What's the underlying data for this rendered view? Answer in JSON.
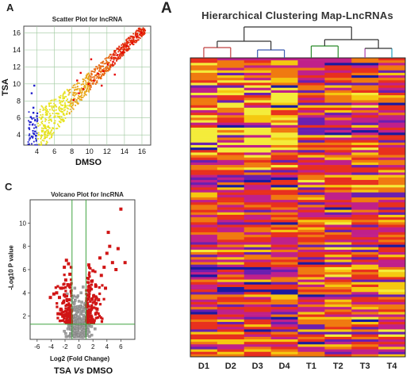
{
  "panels": {
    "A_left": "A",
    "A_right": "A",
    "C": "C"
  },
  "chart_data": [
    {
      "type": "scatter",
      "title": "Scatter Plot for lncRNA",
      "xlabel": "DMSO",
      "ylabel": "TSA",
      "xlim": [
        2.5,
        17
      ],
      "ylim": [
        2.8,
        16.8
      ],
      "x_ticks": [
        4,
        6,
        8,
        10,
        12,
        14,
        16
      ],
      "y_ticks": [
        4,
        6,
        8,
        10,
        12,
        14,
        16
      ],
      "grid": true,
      "colors": {
        "low": "#1f1fcc",
        "mid": "#e8e81a",
        "high": "#e60000",
        "grid": "#9ec89e"
      },
      "series": [
        {
          "values": [
            [
              3.2,
              3.6
            ],
            [
              3.5,
              5.2
            ],
            [
              3.8,
              4.4
            ],
            [
              3.3,
              6.1
            ],
            [
              3.9,
              3.9
            ],
            [
              3.6,
              7.2
            ],
            [
              3.4,
              8.9
            ],
            [
              3.7,
              9.8
            ],
            [
              3.1,
              4.8
            ],
            [
              3.8,
              5.7
            ],
            [
              3.6,
              6.6
            ],
            [
              3.9,
              4.9
            ],
            [
              3.4,
              3.8
            ],
            [
              3.2,
              5.5
            ],
            [
              3.7,
              4.1
            ],
            [
              4.0,
              6.2
            ]
          ]
        },
        {
          "values": [
            [
              4.2,
              4.0
            ],
            [
              4.6,
              4.4
            ],
            [
              4.9,
              5.1
            ],
            [
              5.3,
              5.0
            ],
            [
              5.6,
              5.8
            ],
            [
              6.0,
              6.1
            ],
            [
              6.4,
              6.5
            ],
            [
              6.9,
              6.7
            ],
            [
              7.3,
              7.4
            ],
            [
              7.8,
              7.5
            ],
            [
              4.5,
              5.9
            ],
            [
              5.1,
              6.8
            ],
            [
              5.8,
              4.8
            ],
            [
              6.7,
              5.5
            ],
            [
              7.0,
              8.3
            ],
            [
              5.4,
              7.7
            ]
          ]
        },
        {
          "values": [
            [
              8.2,
              8.1
            ],
            [
              8.8,
              8.9
            ],
            [
              9.3,
              9.4
            ],
            [
              9.9,
              10.0
            ],
            [
              10.5,
              10.4
            ],
            [
              11.0,
              11.2
            ],
            [
              11.6,
              11.5
            ],
            [
              12.1,
              12.3
            ],
            [
              12.7,
              12.6
            ],
            [
              13.2,
              13.4
            ],
            [
              13.8,
              13.7
            ],
            [
              14.3,
              14.5
            ],
            [
              14.9,
              14.8
            ],
            [
              15.4,
              15.6
            ],
            [
              15.9,
              16.0
            ],
            [
              9.0,
              11.3
            ],
            [
              10.2,
              12.9
            ],
            [
              11.4,
              9.8
            ],
            [
              12.9,
              11.1
            ],
            [
              8.6,
              10.4
            ]
          ]
        }
      ]
    },
    {
      "type": "scatter",
      "title": "Volcano Plot for lncRNA",
      "xlabel": "Log2 (Fold Change)",
      "ylabel": "-Log10 P value",
      "xlim": [
        -7,
        8
      ],
      "ylim": [
        0,
        12
      ],
      "x_ticks": [
        -6,
        -4,
        -2,
        0,
        2,
        4,
        6
      ],
      "y_ticks": [
        2,
        4,
        6,
        8,
        10
      ],
      "vlines": [
        -1,
        1
      ],
      "hline": 1.3,
      "caption_prefix": "TSA ",
      "caption_vs": "Vs",
      "caption_suffix": " DMSO",
      "colors": {
        "significant": "#d01515",
        "ns": "#a0a0a0",
        "lines": "#3fa33f"
      },
      "series": [
        {
          "values": [
            [
              -3.2,
              4.0
            ],
            [
              -2.8,
              3.6
            ],
            [
              -2.5,
              4.4
            ],
            [
              -2.2,
              3.2
            ],
            [
              -1.9,
              5.1
            ],
            [
              -1.6,
              4.7
            ],
            [
              -1.4,
              3.4
            ],
            [
              -1.2,
              2.9
            ],
            [
              -3.6,
              3.9
            ],
            [
              -2.1,
              6.2
            ],
            [
              -1.8,
              6.8
            ],
            [
              -2.6,
              2.6
            ],
            [
              -1.3,
              5.6
            ],
            [
              -3.0,
              2.2
            ],
            [
              -2.3,
              2.0
            ],
            [
              -1.5,
              6.5
            ],
            [
              -4.1,
              3.6
            ],
            [
              1.2,
              3.1
            ],
            [
              1.5,
              4.2
            ],
            [
              1.8,
              5.0
            ],
            [
              2.1,
              3.7
            ],
            [
              2.4,
              4.6
            ],
            [
              2.8,
              3.4
            ],
            [
              3.2,
              5.5
            ],
            [
              3.6,
              6.2
            ],
            [
              4.0,
              7.4
            ],
            [
              4.4,
              8.0
            ],
            [
              4.8,
              6.6
            ],
            [
              5.3,
              6.0
            ],
            [
              6.0,
              11.2
            ],
            [
              6.6,
              6.6
            ],
            [
              1.4,
              6.4
            ],
            [
              2.0,
              5.9
            ],
            [
              2.6,
              2.6
            ],
            [
              3.0,
              7.0
            ],
            [
              3.8,
              4.4
            ],
            [
              4.2,
              9.2
            ],
            [
              5.6,
              7.8
            ],
            [
              1.6,
              2.3
            ]
          ]
        },
        {
          "values": [
            [
              -0.8,
              1.2
            ],
            [
              -0.5,
              2.0
            ],
            [
              -0.2,
              2.8
            ],
            [
              0.1,
              1.6
            ],
            [
              0.4,
              3.2
            ],
            [
              0.7,
              2.4
            ],
            [
              0.9,
              1.0
            ],
            [
              -0.9,
              3.6
            ],
            [
              -0.3,
              1.1
            ],
            [
              0.3,
              4.0
            ],
            [
              -1.2,
              1.0
            ],
            [
              -1.6,
              0.9
            ],
            [
              1.3,
              0.8
            ],
            [
              1.8,
              1.1
            ],
            [
              -2.1,
              0.7
            ],
            [
              0.0,
              0.6
            ],
            [
              0.6,
              4.5
            ],
            [
              -0.6,
              4.4
            ],
            [
              -1.9,
              0.5
            ],
            [
              2.3,
              0.9
            ]
          ]
        }
      ]
    },
    {
      "type": "heatmap",
      "title": "Hierarchical Clustering Map-LncRNAs",
      "columns": [
        "D1",
        "D2",
        "D3",
        "D4",
        "T1",
        "T2",
        "T3",
        "T4"
      ],
      "color_scale": [
        "#1a1aa0",
        "#6a1fb0",
        "#c0208a",
        "#e8301e",
        "#f07a10",
        "#f5c810",
        "#f4ec3a"
      ],
      "dendrogram": "two clusters: D1-D4 and T1-T4",
      "row_count": 120
    }
  ]
}
